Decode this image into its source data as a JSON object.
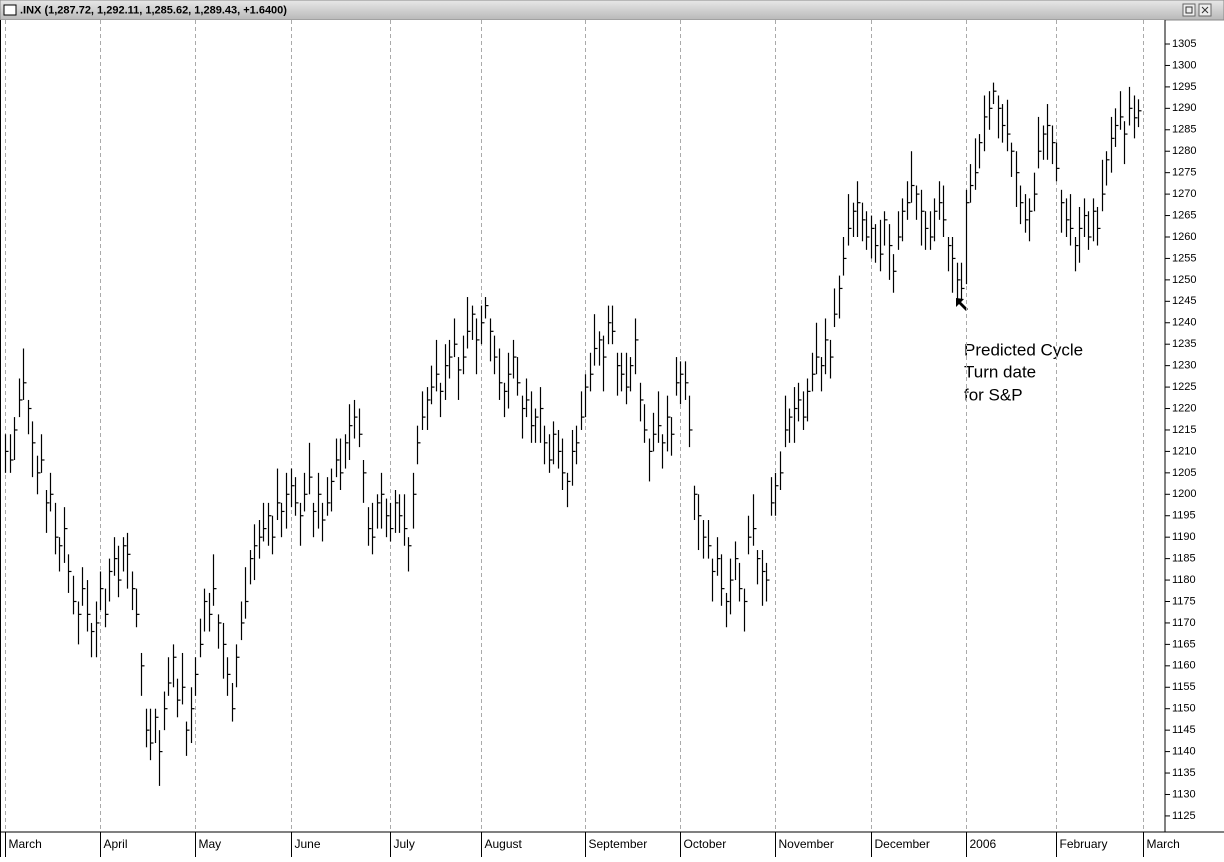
{
  "chart_data": {
    "type": "ohlc",
    "title": ".INX (1,287.72, 1,292.11, 1,285.62, 1,289.43, +1.6400)",
    "annotation": [
      "Predicted Cycle",
      "Turn date",
      "for S&P"
    ],
    "color": "#000000",
    "grid": true,
    "categories": [
      "March",
      null,
      null,
      null,
      null,
      null,
      null,
      null,
      null,
      null,
      null,
      null,
      null,
      null,
      null,
      null,
      null,
      null,
      null,
      null,
      null,
      "April",
      null,
      null,
      null,
      null,
      null,
      null,
      null,
      null,
      null,
      null,
      null,
      null,
      null,
      null,
      null,
      null,
      null,
      null,
      null,
      null,
      "May",
      null,
      null,
      null,
      null,
      null,
      null,
      null,
      null,
      null,
      null,
      null,
      null,
      null,
      null,
      null,
      null,
      null,
      null,
      null,
      null,
      "June",
      null,
      null,
      null,
      null,
      null,
      null,
      null,
      null,
      null,
      null,
      null,
      null,
      null,
      null,
      null,
      null,
      null,
      null,
      null,
      null,
      null,
      "July",
      null,
      null,
      null,
      null,
      null,
      null,
      null,
      null,
      null,
      null,
      null,
      null,
      null,
      null,
      null,
      null,
      null,
      null,
      null,
      "August",
      null,
      null,
      null,
      null,
      null,
      null,
      null,
      null,
      null,
      null,
      null,
      null,
      null,
      null,
      null,
      null,
      null,
      null,
      null,
      null,
      null,
      null,
      "September",
      null,
      null,
      null,
      null,
      null,
      null,
      null,
      null,
      null,
      null,
      null,
      null,
      null,
      null,
      null,
      null,
      null,
      null,
      null,
      null,
      "October",
      null,
      null,
      null,
      null,
      null,
      null,
      null,
      null,
      null,
      null,
      null,
      null,
      null,
      null,
      null,
      null,
      null,
      null,
      null,
      null,
      "November",
      null,
      null,
      null,
      null,
      null,
      null,
      null,
      null,
      null,
      null,
      null,
      null,
      null,
      null,
      null,
      null,
      null,
      null,
      null,
      null,
      "December",
      null,
      null,
      null,
      null,
      null,
      null,
      null,
      null,
      null,
      null,
      null,
      null,
      null,
      null,
      null,
      null,
      null,
      null,
      null,
      null,
      "2006",
      null,
      null,
      null,
      null,
      null,
      null,
      null,
      null,
      null,
      null,
      null,
      null,
      null,
      null,
      null,
      null,
      null,
      null,
      null,
      "February",
      null,
      null,
      null,
      null,
      null,
      null,
      null,
      null,
      null,
      null,
      null,
      null,
      null,
      null,
      null,
      null,
      null,
      null,
      "March",
      null,
      null,
      null,
      null
    ],
    "high": [
      1214,
      1214,
      1218,
      1227,
      1234,
      1222,
      1217,
      1209,
      1214,
      1201,
      1205,
      1198,
      1190,
      1197,
      1186,
      1181,
      1175,
      1183,
      1180,
      1170,
      1175,
      1182,
      1178,
      1185,
      1190,
      1188,
      1190,
      1191,
      1182,
      1178,
      1163,
      1150,
      1150,
      1150,
      1145,
      1154,
      1162,
      1165,
      1157,
      1163,
      1147,
      1155,
      1162,
      1171,
      1178,
      1177,
      1186,
      1172,
      1170,
      1162,
      1156,
      1165,
      1175,
      1183,
      1187,
      1193,
      1194,
      1198,
      1198,
      1195,
      1206,
      1198,
      1205,
      1206,
      1204,
      1198,
      1205,
      1212,
      1198,
      1205,
      1198,
      1204,
      1206,
      1213,
      1213,
      1214,
      1221,
      1222,
      1220,
      1208,
      1197,
      1198,
      1200,
      1205,
      1199,
      1198,
      1201,
      1200,
      1200,
      1190,
      1205,
      1216,
      1224,
      1225,
      1230,
      1236,
      1226,
      1235,
      1236,
      1241,
      1232,
      1237,
      1246,
      1244,
      1241,
      1244,
      1246,
      1241,
      1237,
      1234,
      1226,
      1233,
      1236,
      1232,
      1223,
      1227,
      1224,
      1220,
      1225,
      1216,
      1214,
      1217,
      1215,
      1213,
      1205,
      1215,
      1216,
      1224,
      1228,
      1233,
      1242,
      1238,
      1237,
      1244,
      1244,
      1233,
      1233,
      1233,
      1232,
      1241,
      1226,
      1221,
      1213,
      1219,
      1224,
      1214,
      1223,
      1218,
      1232,
      1231,
      1231,
      1223,
      1202,
      1200,
      1194,
      1194,
      1185,
      1190,
      1186,
      1177,
      1185,
      1189,
      1184,
      1178,
      1195,
      1200,
      1187,
      1187,
      1184,
      1204,
      1205,
      1210,
      1223,
      1220,
      1225,
      1226,
      1224,
      1227,
      1233,
      1240,
      1232,
      1241,
      1236,
      1248,
      1251,
      1260,
      1270,
      1268,
      1273,
      1268,
      1266,
      1265,
      1263,
      1264,
      1266,
      1263,
      1256,
      1266,
      1269,
      1273,
      1280,
      1272,
      1271,
      1266,
      1266,
      1269,
      1273,
      1272,
      1260,
      1260,
      1254,
      1254,
      1271,
      1277,
      1283,
      1284,
      1293,
      1294,
      1296,
      1293,
      1291,
      1292,
      1282,
      1280,
      1272,
      1270,
      1269,
      1275,
      1288,
      1286,
      1291,
      1286,
      1282,
      1271,
      1269,
      1270,
      1260,
      1267,
      1269,
      1266,
      1269,
      1267,
      1278,
      1280,
      1288,
      1290,
      1294,
      1287,
      1295,
      1293,
      1292.11,
      null,
      null,
      null,
      null,
      null
    ],
    "low": [
      1205,
      1205,
      1208,
      1218,
      1222,
      1214,
      1204,
      1200,
      1205,
      1191,
      1196,
      1186,
      1182,
      1184,
      1177,
      1172,
      1165,
      1174,
      1168,
      1162,
      1162,
      1173,
      1169,
      1175,
      1181,
      1176,
      1182,
      1178,
      1173,
      1169,
      1153,
      1141,
      1138,
      1142,
      1132,
      1145,
      1153,
      1155,
      1148,
      1151,
      1139,
      1142,
      1153,
      1162,
      1168,
      1168,
      1174,
      1164,
      1157,
      1153,
      1147,
      1155,
      1166,
      1171,
      1179,
      1180,
      1185,
      1189,
      1188,
      1186,
      1194,
      1190,
      1192,
      1197,
      1195,
      1188,
      1196,
      1200,
      1190,
      1192,
      1189,
      1195,
      1196,
      1204,
      1201,
      1206,
      1208,
      1213,
      1211,
      1198,
      1188,
      1186,
      1192,
      1192,
      1190,
      1189,
      1191,
      1191,
      1188,
      1182,
      1192,
      1207,
      1215,
      1215,
      1221,
      1224,
      1218,
      1222,
      1227,
      1232,
      1222,
      1228,
      1234,
      1236,
      1228,
      1235,
      1241,
      1231,
      1228,
      1222,
      1218,
      1220,
      1227,
      1223,
      1213,
      1218,
      1212,
      1212,
      1212,
      1207,
      1205,
      1207,
      1206,
      1201,
      1197,
      1202,
      1207,
      1215,
      1218,
      1224,
      1230,
      1230,
      1224,
      1235,
      1235,
      1223,
      1224,
      1221,
      1224,
      1228,
      1217,
      1212,
      1203,
      1210,
      1212,
      1206,
      1210,
      1209,
      1223,
      1221,
      1222,
      1211,
      1194,
      1187,
      1185,
      1185,
      1175,
      1181,
      1174,
      1169,
      1172,
      1180,
      1175,
      1168,
      1186,
      1188,
      1179,
      1174,
      1175,
      1195,
      1195,
      1201,
      1211,
      1212,
      1212,
      1217,
      1215,
      1217,
      1224,
      1228,
      1224,
      1228,
      1227,
      1239,
      1241,
      1251,
      1258,
      1260,
      1260,
      1259,
      1257,
      1255,
      1254,
      1252,
      1258,
      1250,
      1247,
      1257,
      1259,
      1264,
      1268,
      1264,
      1258,
      1257,
      1257,
      1259,
      1264,
      1260,
      1252,
      1247,
      1245,
      1245,
      1249,
      1268,
      1271,
      1276,
      1280,
      1285,
      1291,
      1283,
      1282,
      1280,
      1274,
      1267,
      1263,
      1261,
      1259,
      1266,
      1276,
      1278,
      1278,
      1277,
      1273,
      1261,
      1260,
      1258,
      1252,
      1254,
      1260,
      1257,
      1259,
      1258,
      1266,
      1272,
      1275,
      1281,
      1285,
      1277,
      1286,
      1283,
      1285.62,
      null,
      null,
      null,
      null,
      null
    ],
    "close": [
      1210,
      1208,
      1215,
      1222,
      1226,
      1220,
      1212,
      1205,
      1208,
      1198,
      1200,
      1190,
      1188,
      1192,
      1182,
      1175,
      1172,
      1178,
      1172,
      1168,
      1170,
      1178,
      1172,
      1182,
      1185,
      1180,
      1188,
      1186,
      1178,
      1172,
      1160,
      1145,
      1142,
      1148,
      1140,
      1150,
      1156,
      1162,
      1152,
      1155,
      1145,
      1150,
      1158,
      1165,
      1175,
      1172,
      1178,
      1170,
      1165,
      1158,
      1150,
      1162,
      1170,
      1175,
      1185,
      1188,
      1190,
      1192,
      1195,
      1190,
      1198,
      1196,
      1200,
      1202,
      1198,
      1195,
      1200,
      1204,
      1196,
      1200,
      1194,
      1198,
      1203,
      1208,
      1205,
      1212,
      1216,
      1218,
      1214,
      1205,
      1192,
      1190,
      1198,
      1200,
      1195,
      1192,
      1198,
      1195,
      1192,
      1188,
      1200,
      1212,
      1218,
      1222,
      1225,
      1228,
      1224,
      1230,
      1232,
      1235,
      1229,
      1232,
      1238,
      1242,
      1236,
      1240,
      1244,
      1238,
      1232,
      1226,
      1224,
      1228,
      1232,
      1226,
      1220,
      1222,
      1216,
      1218,
      1220,
      1212,
      1208,
      1214,
      1210,
      1205,
      1203,
      1210,
      1212,
      1218,
      1225,
      1228,
      1234,
      1236,
      1232,
      1240,
      1238,
      1230,
      1228,
      1225,
      1230,
      1236,
      1222,
      1215,
      1210,
      1214,
      1216,
      1212,
      1218,
      1214,
      1226,
      1228,
      1226,
      1215,
      1200,
      1195,
      1190,
      1188,
      1182,
      1185,
      1178,
      1175,
      1180,
      1185,
      1178,
      1175,
      1190,
      1192,
      1185,
      1182,
      1180,
      1198,
      1202,
      1205,
      1215,
      1218,
      1220,
      1222,
      1218,
      1224,
      1228,
      1232,
      1230,
      1236,
      1232,
      1242,
      1248,
      1255,
      1262,
      1266,
      1268,
      1264,
      1260,
      1262,
      1258,
      1256,
      1264,
      1258,
      1252,
      1260,
      1266,
      1268,
      1272,
      1270,
      1266,
      1262,
      1260,
      1266,
      1268,
      1264,
      1258,
      1255,
      1250,
      1248,
      1268,
      1272,
      1275,
      1282,
      1288,
      1290,
      1294,
      1290,
      1286,
      1284,
      1280,
      1275,
      1268,
      1264,
      1266,
      1270,
      1280,
      1284,
      1286,
      1282,
      1276,
      1268,
      1264,
      1262,
      1258,
      1262,
      1265,
      1260,
      1266,
      1262,
      1270,
      1278,
      1283,
      1286,
      1288,
      1284,
      1290,
      1287.79,
      1289.43,
      null,
      null,
      null,
      null,
      null
    ],
    "ylim": [
      1121.25,
      1310.6
    ],
    "yticks": [
      1125,
      1130,
      1135,
      1140,
      1145,
      1150,
      1155,
      1160,
      1165,
      1170,
      1175,
      1180,
      1185,
      1190,
      1195,
      1200,
      1205,
      1210,
      1215,
      1220,
      1225,
      1230,
      1235,
      1240,
      1245,
      1250,
      1255,
      1260,
      1265,
      1270,
      1275,
      1280,
      1285,
      1290,
      1295,
      1300,
      1305
    ]
  }
}
